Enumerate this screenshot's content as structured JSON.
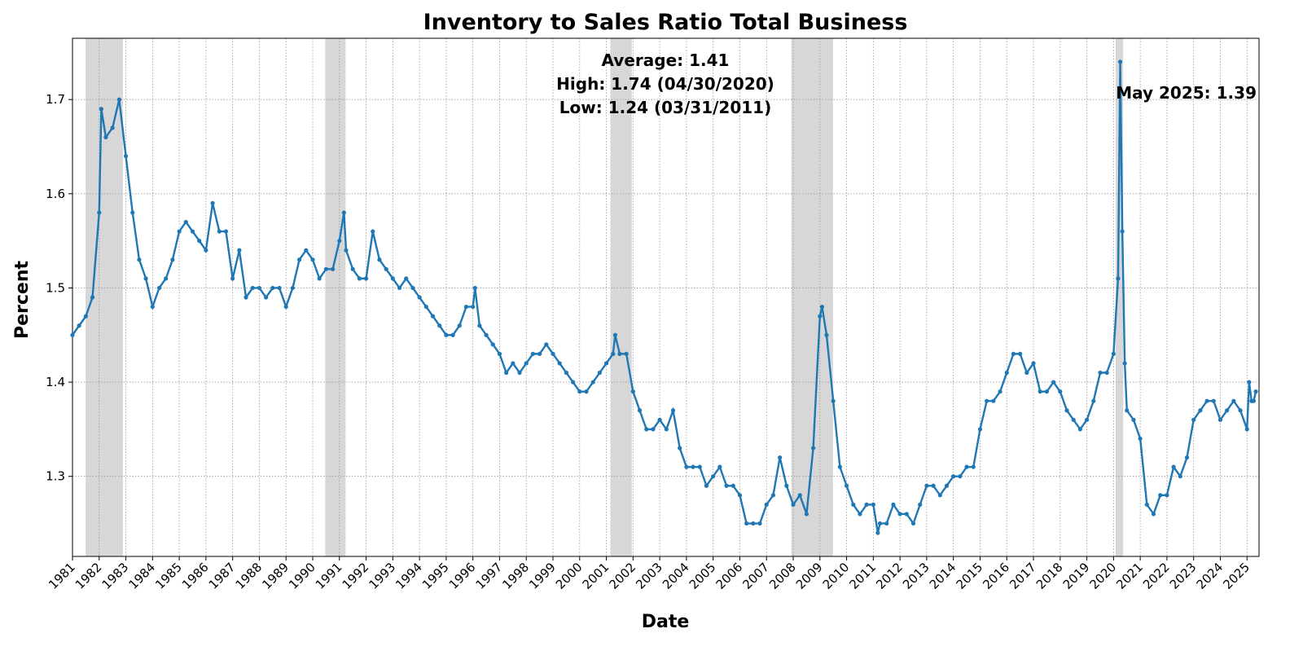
{
  "chart_data": {
    "type": "line",
    "title": "Inventory to Sales Ratio Total Business",
    "x_label": "Date",
    "y_label": "Percent",
    "stats_text": [
      "Average: 1.41",
      "High: 1.74 (04/30/2020)",
      "Low: 1.24 (03/31/2011)"
    ],
    "last_label": "May 2025: 1.39",
    "xlim": [
      1981,
      2025.45
    ],
    "ylim": [
      1.215,
      1.765
    ],
    "xticks": [
      1981,
      1982,
      1983,
      1984,
      1985,
      1986,
      1987,
      1988,
      1989,
      1990,
      1991,
      1992,
      1993,
      1994,
      1995,
      1996,
      1997,
      1998,
      1999,
      2000,
      2001,
      2002,
      2003,
      2004,
      2005,
      2006,
      2007,
      2008,
      2009,
      2010,
      2011,
      2012,
      2013,
      2014,
      2015,
      2016,
      2017,
      2018,
      2019,
      2020,
      2021,
      2022,
      2023,
      2024,
      2025
    ],
    "yticks": [
      1.3,
      1.4,
      1.5,
      1.6,
      1.7
    ],
    "grid": true,
    "shade_color": "#d3d3d3",
    "shaded_periods": [
      [
        1981.49,
        1982.89
      ],
      [
        1990.47,
        1991.23
      ],
      [
        2001.15,
        2001.95
      ],
      [
        2007.93,
        2009.49
      ],
      [
        2020.08,
        2020.36
      ]
    ],
    "series": [
      {
        "name": "Inventory to Sales Ratio",
        "color": "#1f77b4",
        "x": [
          1981,
          1981.25,
          1981.5,
          1981.75,
          1982,
          1982.08,
          1982.25,
          1982.5,
          1982.75,
          1983,
          1983.25,
          1983.5,
          1983.75,
          1984,
          1984.25,
          1984.5,
          1984.75,
          1985,
          1985.25,
          1985.5,
          1985.75,
          1986,
          1986.25,
          1986.5,
          1986.75,
          1987,
          1987.25,
          1987.5,
          1987.75,
          1988,
          1988.25,
          1988.5,
          1988.75,
          1989,
          1989.25,
          1989.5,
          1989.75,
          1990,
          1990.25,
          1990.5,
          1990.75,
          1991,
          1991.17,
          1991.25,
          1991.5,
          1991.75,
          1992,
          1992.25,
          1992.5,
          1992.75,
          1993,
          1993.25,
          1993.5,
          1993.75,
          1994,
          1994.25,
          1994.5,
          1994.75,
          1995,
          1995.25,
          1995.5,
          1995.75,
          1996,
          1996.08,
          1996.25,
          1996.5,
          1996.75,
          1997,
          1997.25,
          1997.5,
          1997.75,
          1998,
          1998.25,
          1998.5,
          1998.75,
          1999,
          1999.25,
          1999.5,
          1999.75,
          2000,
          2000.25,
          2000.5,
          2000.75,
          2001,
          2001.25,
          2001.33,
          2001.5,
          2001.75,
          2002,
          2002.25,
          2002.5,
          2002.75,
          2003,
          2003.25,
          2003.5,
          2003.75,
          2004,
          2004.25,
          2004.5,
          2004.75,
          2005,
          2005.25,
          2005.5,
          2005.75,
          2006,
          2006.25,
          2006.5,
          2006.75,
          2007,
          2007.25,
          2007.5,
          2007.75,
          2008,
          2008.25,
          2008.5,
          2008.75,
          2009,
          2009.08,
          2009.25,
          2009.5,
          2009.75,
          2010,
          2010.25,
          2010.5,
          2010.75,
          2011,
          2011.17,
          2011.25,
          2011.5,
          2011.75,
          2012,
          2012.25,
          2012.5,
          2012.75,
          2013,
          2013.25,
          2013.5,
          2013.75,
          2014,
          2014.25,
          2014.5,
          2014.75,
          2015,
          2015.25,
          2015.5,
          2015.75,
          2016,
          2016.25,
          2016.5,
          2016.75,
          2017,
          2017.25,
          2017.5,
          2017.75,
          2018,
          2018.25,
          2018.5,
          2018.75,
          2019,
          2019.25,
          2019.5,
          2019.75,
          2020,
          2020.17,
          2020.25,
          2020.33,
          2020.42,
          2020.5,
          2020.75,
          2021,
          2021.25,
          2021.5,
          2021.75,
          2022,
          2022.25,
          2022.5,
          2022.75,
          2023,
          2023.25,
          2023.5,
          2023.75,
          2024,
          2024.25,
          2024.5,
          2024.75,
          2025,
          2025.08,
          2025.17,
          2025.25,
          2025.33
        ],
        "values": [
          1.45,
          1.46,
          1.47,
          1.49,
          1.58,
          1.69,
          1.66,
          1.67,
          1.7,
          1.64,
          1.58,
          1.53,
          1.51,
          1.48,
          1.5,
          1.51,
          1.53,
          1.56,
          1.57,
          1.56,
          1.55,
          1.54,
          1.59,
          1.56,
          1.56,
          1.51,
          1.54,
          1.49,
          1.5,
          1.5,
          1.49,
          1.5,
          1.5,
          1.48,
          1.5,
          1.53,
          1.54,
          1.53,
          1.51,
          1.52,
          1.52,
          1.55,
          1.58,
          1.54,
          1.52,
          1.51,
          1.51,
          1.56,
          1.53,
          1.52,
          1.51,
          1.5,
          1.51,
          1.5,
          1.49,
          1.48,
          1.47,
          1.46,
          1.45,
          1.45,
          1.46,
          1.48,
          1.48,
          1.5,
          1.46,
          1.45,
          1.44,
          1.43,
          1.41,
          1.42,
          1.41,
          1.42,
          1.43,
          1.43,
          1.44,
          1.43,
          1.42,
          1.41,
          1.4,
          1.39,
          1.39,
          1.4,
          1.41,
          1.42,
          1.43,
          1.45,
          1.43,
          1.43,
          1.39,
          1.37,
          1.35,
          1.35,
          1.36,
          1.35,
          1.37,
          1.33,
          1.31,
          1.31,
          1.31,
          1.29,
          1.3,
          1.31,
          1.29,
          1.29,
          1.28,
          1.25,
          1.25,
          1.25,
          1.27,
          1.28,
          1.32,
          1.29,
          1.27,
          1.28,
          1.26,
          1.33,
          1.47,
          1.48,
          1.45,
          1.38,
          1.31,
          1.29,
          1.27,
          1.26,
          1.27,
          1.27,
          1.24,
          1.25,
          1.25,
          1.27,
          1.26,
          1.26,
          1.25,
          1.27,
          1.29,
          1.29,
          1.28,
          1.29,
          1.3,
          1.3,
          1.31,
          1.31,
          1.35,
          1.38,
          1.38,
          1.39,
          1.41,
          1.43,
          1.43,
          1.41,
          1.42,
          1.39,
          1.39,
          1.4,
          1.39,
          1.37,
          1.36,
          1.35,
          1.36,
          1.38,
          1.41,
          1.41,
          1.43,
          1.51,
          1.74,
          1.56,
          1.42,
          1.37,
          1.36,
          1.34,
          1.27,
          1.26,
          1.28,
          1.28,
          1.31,
          1.3,
          1.32,
          1.36,
          1.37,
          1.38,
          1.38,
          1.36,
          1.37,
          1.38,
          1.37,
          1.35,
          1.4,
          1.38,
          1.38,
          1.39
        ]
      }
    ]
  }
}
